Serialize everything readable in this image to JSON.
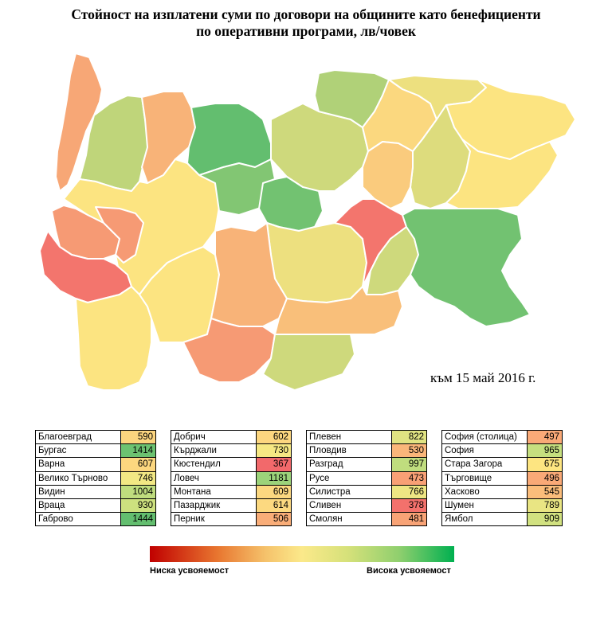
{
  "title_line1": "Стойност на изплатени суми по договори на общините като бенефициенти",
  "title_line2": "по оперативни програми, лв/човек",
  "date_note": "към 15 май 2016 г.",
  "legend": {
    "low": "Ниска усвояемост",
    "high": "Висока усвояемост",
    "low_color": "#c00000",
    "high_color": "#00b050"
  },
  "regions": [
    [
      {
        "name": "Благоевград",
        "value": "590",
        "color": "#fcd57f"
      },
      {
        "name": "Бургас",
        "value": "1414",
        "color": "#6cc271"
      },
      {
        "name": "Варна",
        "value": "607",
        "color": "#fcd77f"
      },
      {
        "name": "Велико Търново",
        "value": "746",
        "color": "#f2e884"
      },
      {
        "name": "Видин",
        "value": "1004",
        "color": "#bfdd7e"
      },
      {
        "name": "Враца",
        "value": "930",
        "color": "#cde17f"
      },
      {
        "name": "Габрово",
        "value": "1444",
        "color": "#63be6f"
      }
    ],
    [
      {
        "name": "Добрич",
        "value": "602",
        "color": "#fcd67f"
      },
      {
        "name": "Кърджали",
        "value": "730",
        "color": "#f6e883"
      },
      {
        "name": "Кюстендил",
        "value": "367",
        "color": "#f2696b"
      },
      {
        "name": "Ловеч",
        "value": "1181",
        "color": "#9cd37a"
      },
      {
        "name": "Монтана",
        "value": "609",
        "color": "#fcd880"
      },
      {
        "name": "Пазарджик",
        "value": "614",
        "color": "#fcd980"
      },
      {
        "name": "Перник",
        "value": "506",
        "color": "#f9ad78"
      }
    ],
    [
      {
        "name": "Плевен",
        "value": "822",
        "color": "#e0e382"
      },
      {
        "name": "Пловдив",
        "value": "530",
        "color": "#fab67a"
      },
      {
        "name": "Разград",
        "value": "997",
        "color": "#c0dd7e"
      },
      {
        "name": "Русе",
        "value": "473",
        "color": "#f8a075"
      },
      {
        "name": "Силистра",
        "value": "766",
        "color": "#eee683"
      },
      {
        "name": "Сливен",
        "value": "378",
        "color": "#f3716c"
      },
      {
        "name": "Смолян",
        "value": "481",
        "color": "#f8a376"
      }
    ],
    [
      {
        "name": "София (столица)",
        "value": "497",
        "color": "#f9a977"
      },
      {
        "name": "София",
        "value": "965",
        "color": "#c6df7f"
      },
      {
        "name": "Стара Загора",
        "value": "675",
        "color": "#fde581"
      },
      {
        "name": "Търговище",
        "value": "496",
        "color": "#f9a977"
      },
      {
        "name": "Хасково",
        "value": "545",
        "color": "#fbbd7b"
      },
      {
        "name": "Шумен",
        "value": "789",
        "color": "#e9e583"
      },
      {
        "name": "Ямбол",
        "value": "909",
        "color": "#d1e180"
      }
    ]
  ]
}
